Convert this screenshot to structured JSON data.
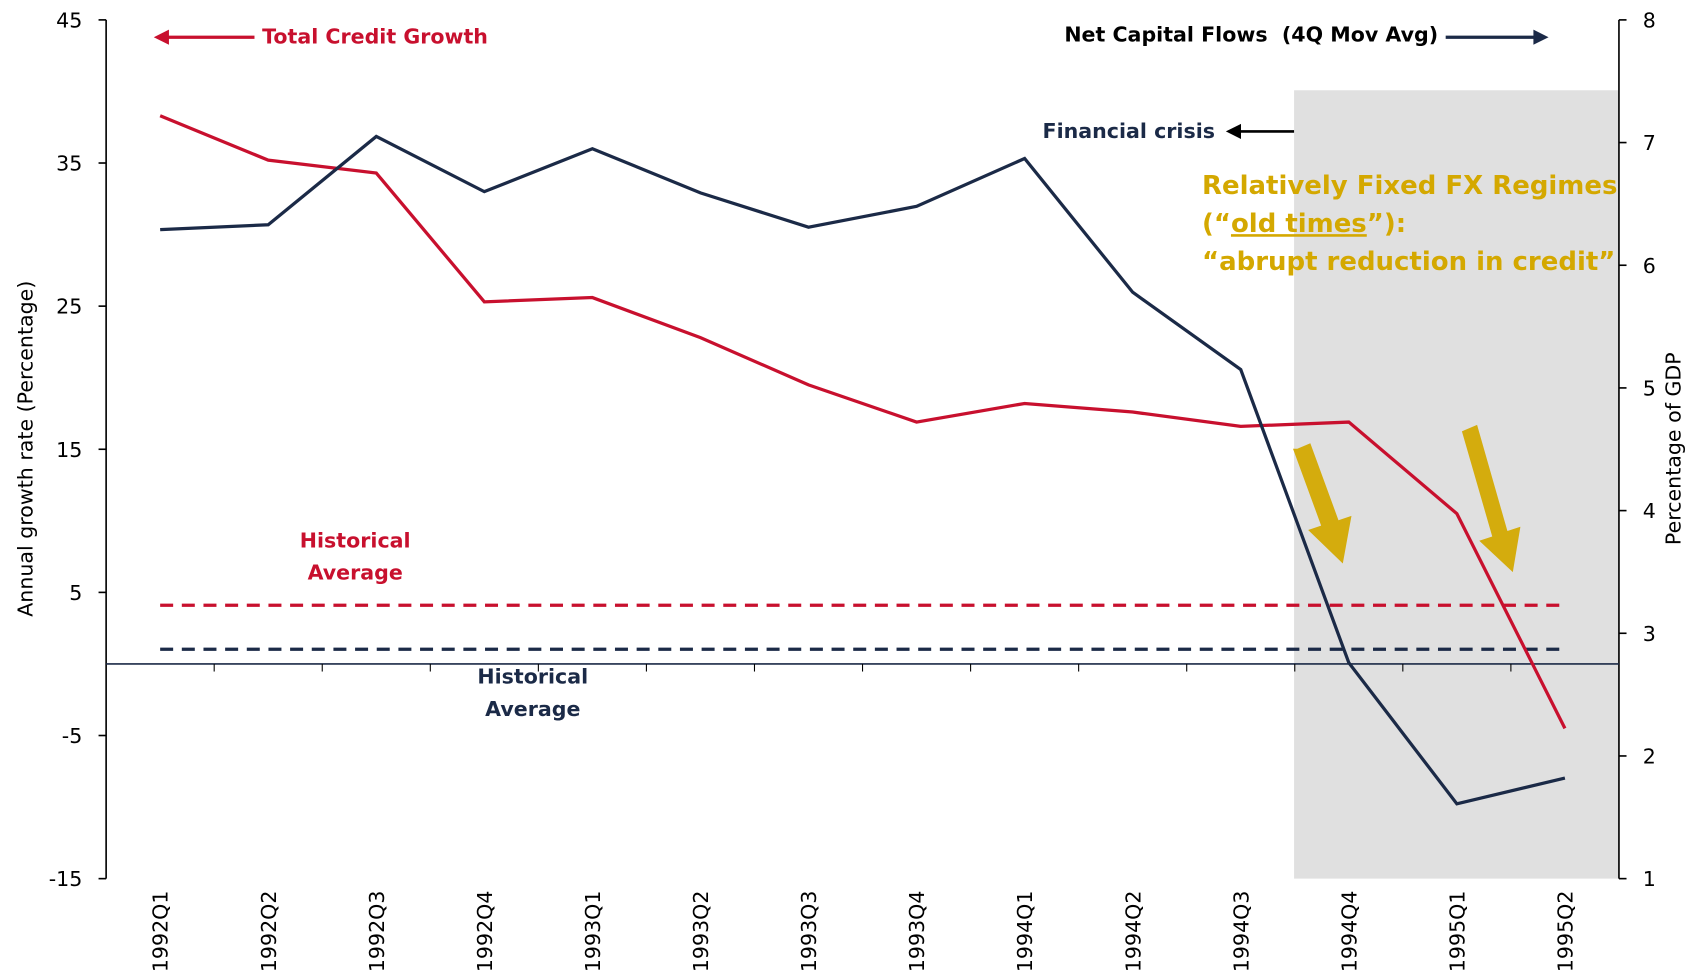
{
  "chart_data": {
    "type": "line",
    "categories": [
      "1992Q1",
      "1992Q2",
      "1992Q3",
      "1992Q4",
      "1993Q1",
      "1993Q2",
      "1993Q3",
      "1993Q4",
      "1994Q1",
      "1994Q2",
      "1994Q3",
      "1994Q4",
      "1995Q1",
      "1995Q2"
    ],
    "series": [
      {
        "name": "Total Credit Growth",
        "color": "#c8102e",
        "axis": "y",
        "values": [
          38.3,
          35.2,
          34.3,
          25.3,
          25.6,
          22.8,
          19.5,
          16.9,
          18.2,
          17.6,
          16.6,
          16.9,
          10.5,
          -4.5
        ]
      },
      {
        "name": "Net Capital Flows  (4Q Mov Avg)",
        "color": "#1b2a47",
        "axis": "y2",
        "values": [
          6.29,
          6.33,
          7.05,
          6.6,
          6.95,
          6.59,
          6.31,
          6.48,
          6.87,
          5.78,
          5.15,
          2.76,
          1.61,
          1.82
        ]
      }
    ],
    "ylim": [
      -15,
      45
    ],
    "yticks": [
      45,
      35,
      25,
      15,
      5,
      -5,
      -15
    ],
    "y2lim": [
      1,
      8
    ],
    "y2ticks": [
      1,
      2,
      3,
      4,
      5,
      6,
      7,
      8
    ],
    "ylabel": "Annual growth rate (Percentage)",
    "y2label": "Percentage of GDP",
    "reference_lines": [
      {
        "label": [
          "Historical",
          "Average"
        ],
        "value": 4.1,
        "color": "#c8102e",
        "axis": "y"
      },
      {
        "label": [
          "Historical",
          "Average"
        ],
        "value": 2.87,
        "color": "#1b2a47",
        "axis": "y2"
      }
    ],
    "annotations": {
      "financial_crisis": "Financial crisis",
      "fx_regime": [
        "Relatively Fixed FX Regimes",
        [
          "(“",
          "old times",
          "”):"
        ],
        "“abrupt reduction in credit”"
      ]
    }
  }
}
